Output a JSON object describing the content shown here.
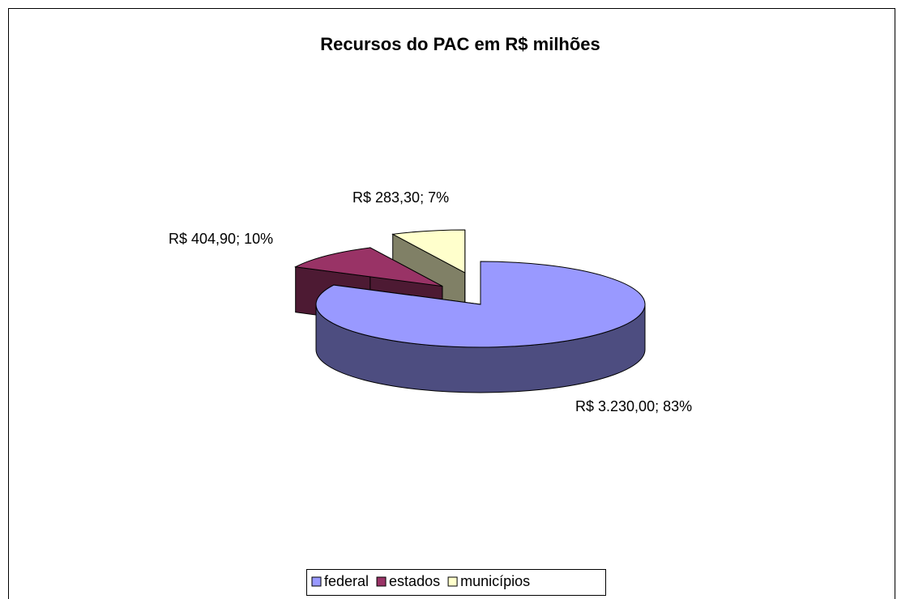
{
  "chart_data": {
    "type": "pie",
    "title": "Recursos do PAC em R$ milhões",
    "categories": [
      "federal",
      "estados",
      "municípios"
    ],
    "values": [
      3230,
      404.9,
      283.3
    ],
    "value_labels": [
      "R$ 3.230,00; 83%",
      "R$ 404,90; 10%",
      "R$ 283,30; 7%"
    ],
    "colors": [
      "#9999ff",
      "#993366",
      "#ffffcc"
    ],
    "legend": "bottom"
  }
}
